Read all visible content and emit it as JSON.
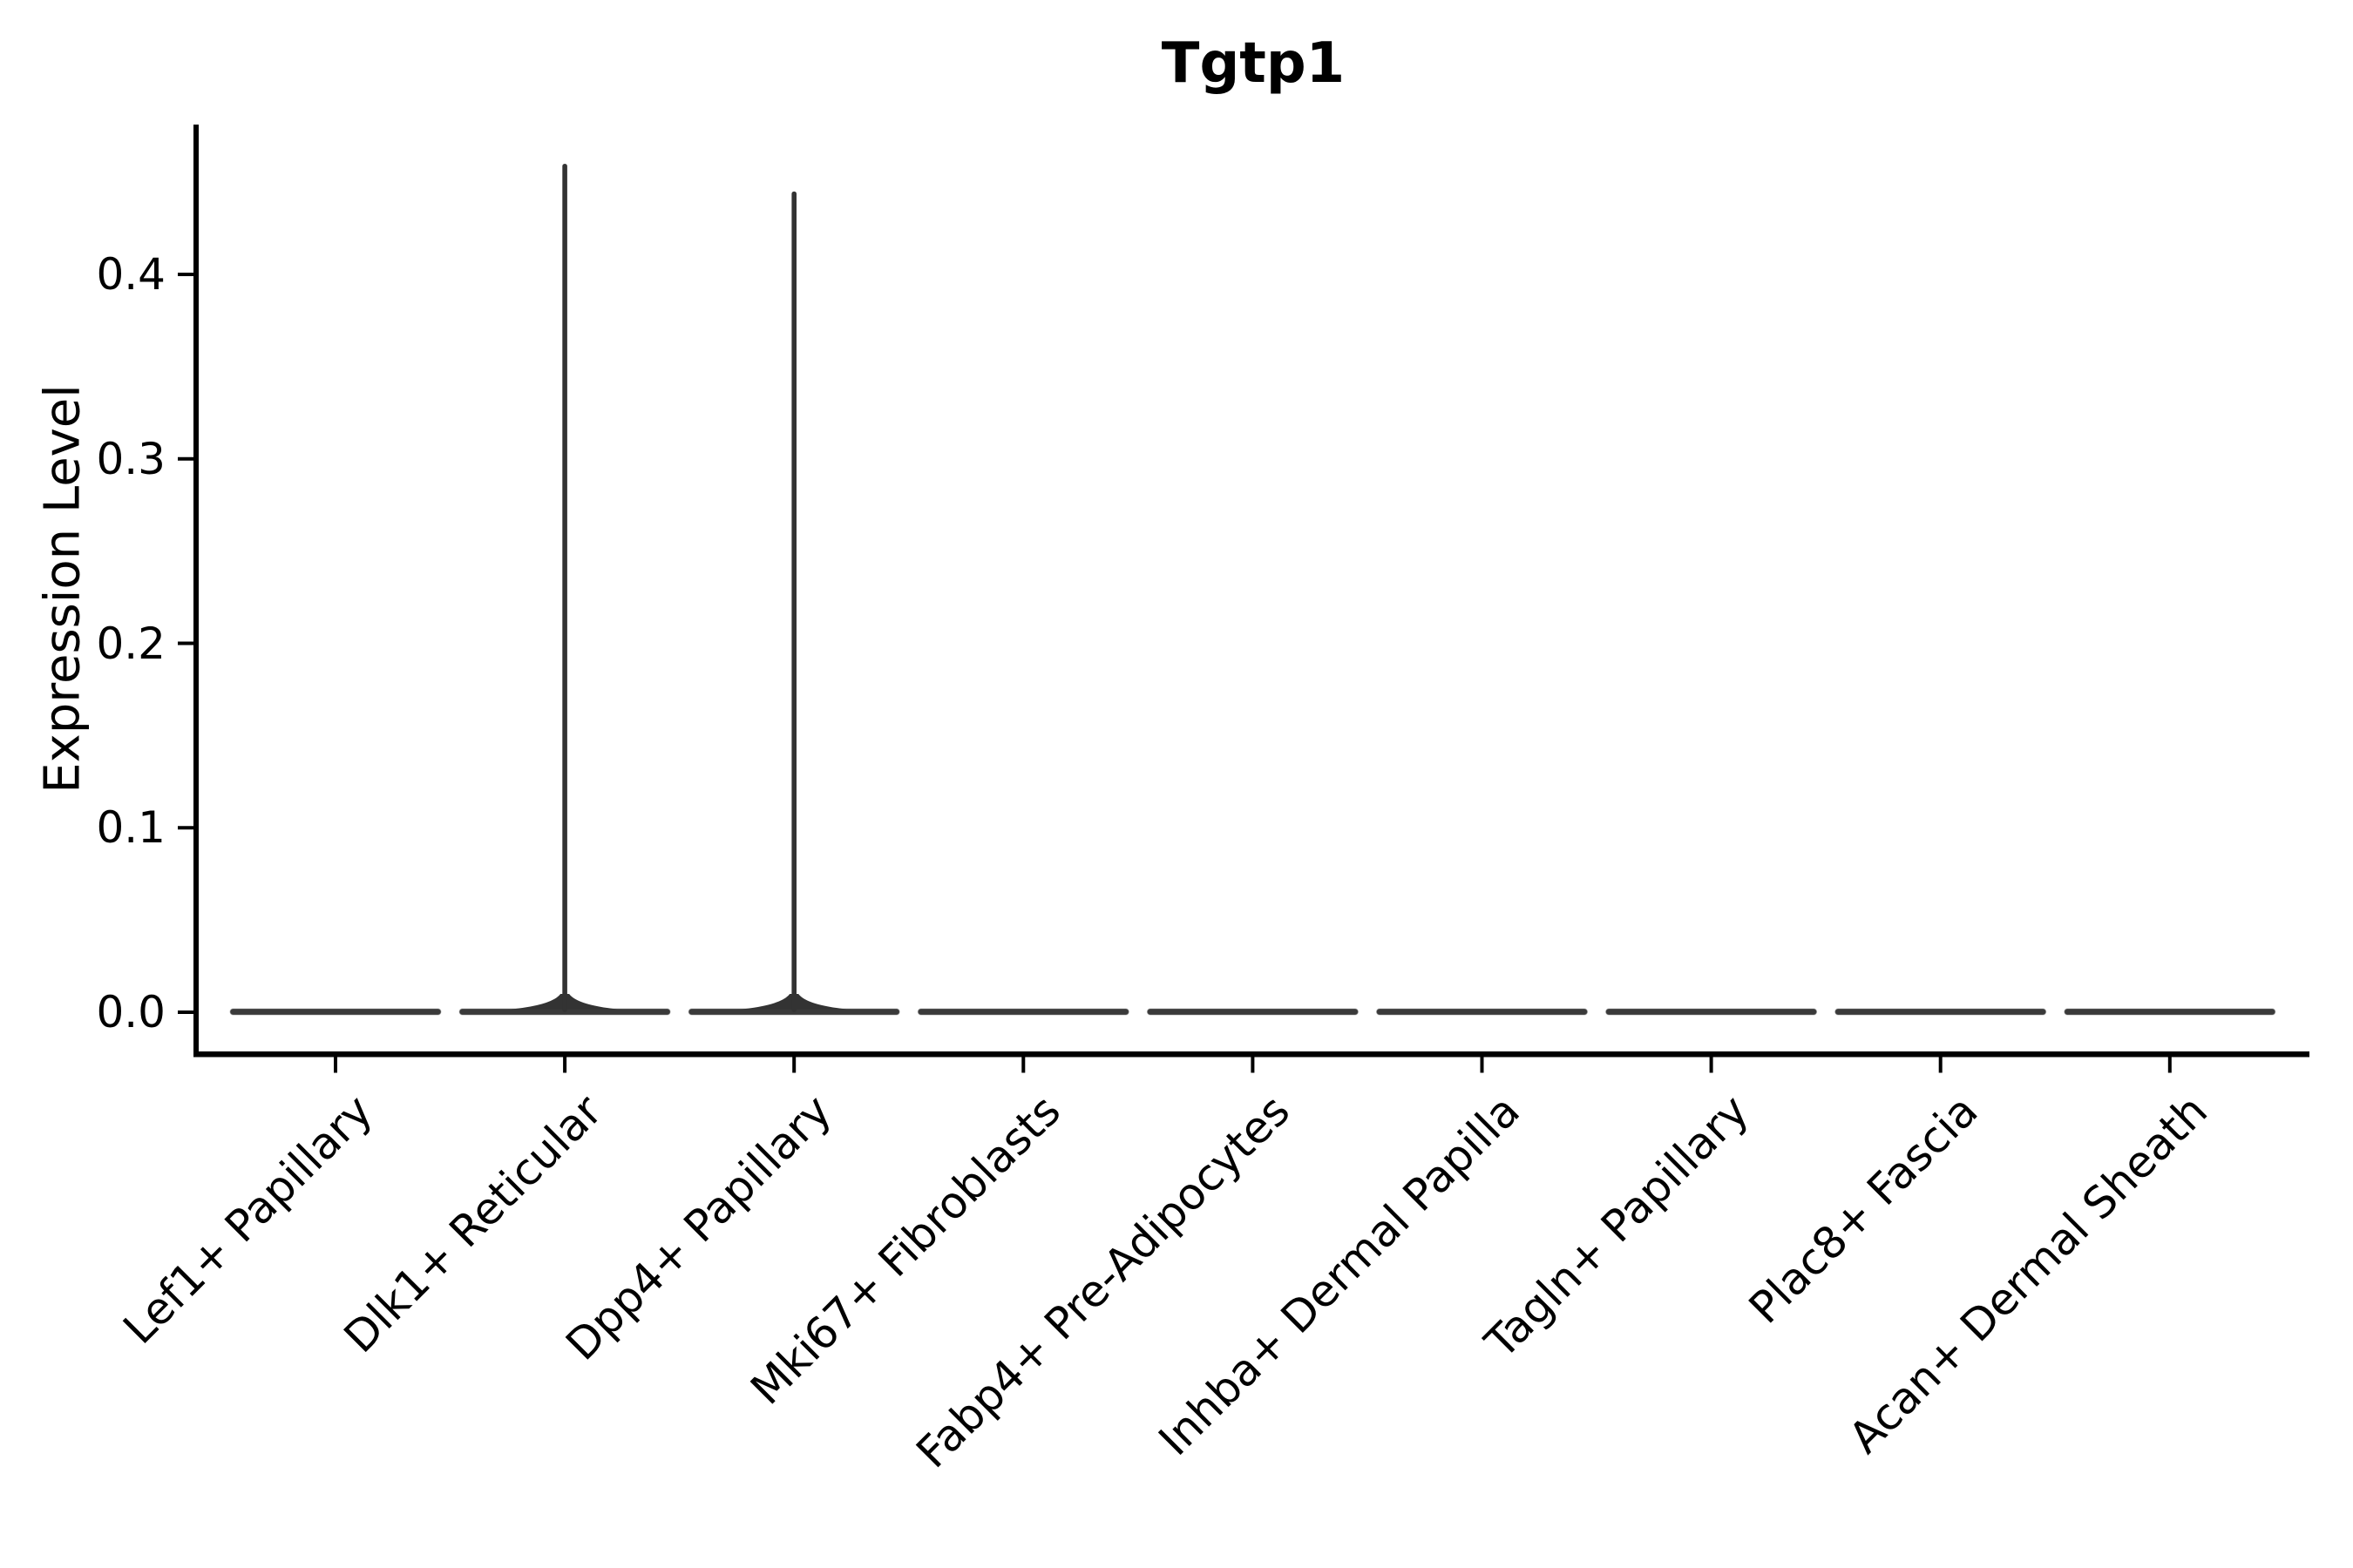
{
  "figure": {
    "title": "Tgtp1",
    "ylabel": "Expression Level"
  },
  "chart_data": {
    "type": "violin",
    "title": "Tgtp1",
    "xlabel": "",
    "ylabel": "Expression Level",
    "categories": [
      "Lef1+ Papillary",
      "Dlk1+ Reticular",
      "Dpp4+ Papillary",
      "Mki67+ Fibroblasts",
      "Fabp4+ Pre-Adipocytes",
      "Inhba+ Dermal Papilla",
      "Tagln+ Papillary",
      "Plac8+ Fascia",
      "Acan+ Dermal Sheath"
    ],
    "violins": [
      {
        "category": "Lef1+ Papillary",
        "body_value": 0.0,
        "spike_max": 0.0
      },
      {
        "category": "Dlk1+ Reticular",
        "body_value": 0.0,
        "spike_max": 0.46
      },
      {
        "category": "Dpp4+ Papillary",
        "body_value": 0.0,
        "spike_max": 0.445
      },
      {
        "category": "Mki67+ Fibroblasts",
        "body_value": 0.0,
        "spike_max": 0.0
      },
      {
        "category": "Fabp4+ Pre-Adipocytes",
        "body_value": 0.0,
        "spike_max": 0.0
      },
      {
        "category": "Inhba+ Dermal Papilla",
        "body_value": 0.0,
        "spike_max": 0.0
      },
      {
        "category": "Tagln+ Papillary",
        "body_value": 0.0,
        "spike_max": 0.0
      },
      {
        "category": "Plac8+ Fascia",
        "body_value": 0.0,
        "spike_max": 0.0
      },
      {
        "category": "Acan+ Dermal Sheath",
        "body_value": 0.0,
        "spike_max": 0.0
      }
    ],
    "yticks": [
      {
        "value": 0.0,
        "label": "0.0"
      },
      {
        "value": 0.1,
        "label": "0.1"
      },
      {
        "value": 0.2,
        "label": "0.2"
      },
      {
        "value": 0.3,
        "label": "0.3"
      },
      {
        "value": 0.4,
        "label": "0.4"
      }
    ],
    "ylim": [
      -0.023,
      0.481
    ],
    "grid": false,
    "legend": null,
    "xtick_rotation_deg": 45,
    "colors": {
      "violin": "#3a3a3a",
      "spike": "#333333",
      "axis": "#000000",
      "text": "#000000",
      "background": "#ffffff"
    }
  }
}
